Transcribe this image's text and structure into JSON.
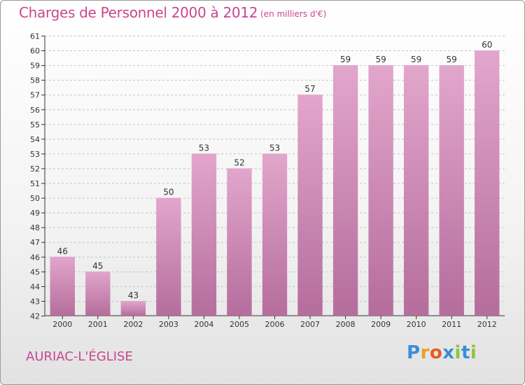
{
  "header": {
    "title": "Charges de Personnel 2000 à 2012",
    "unit": "(en milliers d'€)"
  },
  "footer": {
    "commune": "AURIAC-L'ÉGLISE",
    "logo_letters": [
      "P",
      "r",
      "o",
      "x",
      "i",
      "t",
      "i"
    ],
    "logo_colors": [
      "#3a8fd6",
      "#e8a21c",
      "#e85a1c",
      "#3a8fd6",
      "#8cc63f",
      "#3a8fd6",
      "#8cc63f"
    ]
  },
  "chart_data": {
    "type": "bar",
    "title": "Charges de Personnel 2000 à 2012",
    "subtitle": "(en milliers d'€)",
    "categories": [
      "2000",
      "2001",
      "2002",
      "2003",
      "2004",
      "2005",
      "2006",
      "2007",
      "2008",
      "2009",
      "2010",
      "2011",
      "2012"
    ],
    "values": [
      46,
      45,
      43,
      50,
      53,
      52,
      53,
      57,
      59,
      59,
      59,
      59,
      60
    ],
    "data_labels": [
      "46",
      "45",
      "43",
      "50",
      "53",
      "52",
      "53",
      "57",
      "59",
      "59",
      "59",
      "59",
      "60"
    ],
    "ylim": [
      42,
      61
    ],
    "y_ticks": [
      "42",
      "43",
      "44",
      "45",
      "46",
      "47",
      "48",
      "49",
      "50",
      "51",
      "52",
      "53",
      "54",
      "55",
      "56",
      "57",
      "58",
      "59",
      "60",
      "61"
    ],
    "xlabel": "",
    "ylabel": "",
    "grid": true,
    "legend": "none",
    "bar_color_top": "#e2a6cc",
    "bar_color_bottom": "#b56d9c",
    "grid_color": "#c4c4c4"
  }
}
